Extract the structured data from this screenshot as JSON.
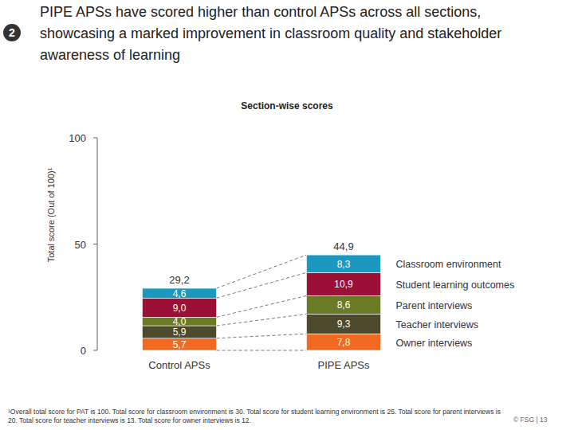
{
  "chart_data": {
    "type": "bar",
    "stacked": true,
    "data_labels": true,
    "legend": "right",
    "title": "PIPE APSs have scored higher than control APSs across all sections, showcasing a marked improvement in classroom quality and stakeholder awareness of learning",
    "badge": "2",
    "subtitle": "Section-wise scores",
    "y_label": "Total score (Out of 100)¹",
    "categories": [
      "Control APSs",
      "PIPE APSs"
    ],
    "series": [
      {
        "name": "Owner interviews",
        "color": "#f26a21",
        "values": [
          5.7,
          7.8
        ],
        "value_labels": [
          "5,7",
          "7,8"
        ]
      },
      {
        "name": "Teacher interviews",
        "color": "#4b4a2c",
        "values": [
          5.9,
          9.3
        ],
        "value_labels": [
          "5,9",
          "9,3"
        ]
      },
      {
        "name": "Parent interviews",
        "color": "#6a7b25",
        "values": [
          4.0,
          8.6
        ],
        "value_labels": [
          "4,0",
          "8,6"
        ]
      },
      {
        "name": "Student learning outcomes",
        "color": "#9c1038",
        "values": [
          9.0,
          10.9
        ],
        "value_labels": [
          "9,0",
          "10,9"
        ]
      },
      {
        "name": "Classroom environment",
        "color": "#1a98c0",
        "values": [
          4.6,
          8.3
        ],
        "value_labels": [
          "4,6",
          "8,3"
        ]
      }
    ],
    "totals": [
      29.2,
      44.9
    ],
    "total_labels": [
      "29,2",
      "44,9"
    ],
    "ylim": [
      0,
      100
    ],
    "yticks": [
      0,
      50,
      100
    ],
    "footnote": "¹Overall total score for PAT is 100. Total score for classroom environment is 30. Total score for student learning environment is 25. Total score for parent interviews is 20. Total score for teacher interviews is 13. Total score for owner interviews is 12.",
    "page": "© FSG | 13"
  }
}
